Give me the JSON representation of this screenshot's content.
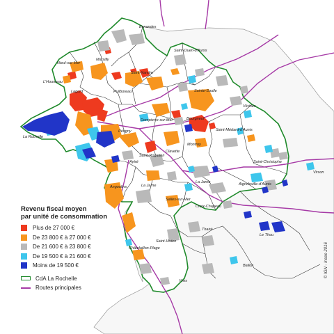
{
  "legend": {
    "title_line1": "Revenu fiscal moyen",
    "title_line2": "par unité de consommation",
    "classes": [
      {
        "label": "Plus de 27 000 €",
        "color": "#ee3a1f"
      },
      {
        "label": "De 23 800 € à 27 000 €",
        "color": "#f7951e"
      },
      {
        "label": "De 21 600 € à 23 800 €",
        "color": "#b9b9b9"
      },
      {
        "label": "De 19 500 € à 21 600 €",
        "color": "#3ec6ec"
      },
      {
        "label": "Moins de 19 500 €",
        "color": "#2135c8"
      }
    ],
    "boundary_label": "CdA La Rochelle",
    "roads_label": "Routes principales"
  },
  "styles": {
    "boundary_color": "#1f8a2b",
    "road_color": "#a63aa6",
    "sea_color": "#ffffff",
    "commune_line_color": "#333333"
  },
  "places": {
    "esnandes": "Esnandes",
    "saint_ouen": "Saint-Ouen-d'Aunis",
    "marsilly": "Marsilly",
    "nieul": "Nieul-sur-Mer",
    "saint_xandre": "Saint-Xandre",
    "houmeau": "L'Houmeau",
    "lagord": "Lagord",
    "puilboreau": "Puilboreau",
    "sainte_soulle": "Sainte-Soulle",
    "verines": "Vérines",
    "dompierre": "Dompierre-sur-Mer",
    "bourgneuf": "Bourgneuf",
    "saint_medard": "Saint-Médard-d'Aunis",
    "la_rochelle": "La Rochelle",
    "perigny": "Périgny",
    "montroy": "Montroy",
    "clavette": "Clavette",
    "saint_christophe": "Saint-Christophe",
    "aytre": "Aytré",
    "saint_rogatien": "Saint-Rogatien",
    "virson": "Virson",
    "la_jarne": "La Jarne",
    "la_jarrie": "La Jarrie",
    "aigrefeuille": "Aigrefeuille-d'Aunis",
    "angoulins": "Angoulins",
    "salles": "Salles-sur-Mer",
    "croix_chapeau": "Croix-Chapeau",
    "le_thou": "Le Thou",
    "thaire": "Thairé",
    "chatelaillon": "Châtelaillon-Plage",
    "saint_vivien": "Saint-Vivien",
    "ballon": "Ballon",
    "yves": "Yves"
  },
  "credit": "© IGN - Insee 2016"
}
